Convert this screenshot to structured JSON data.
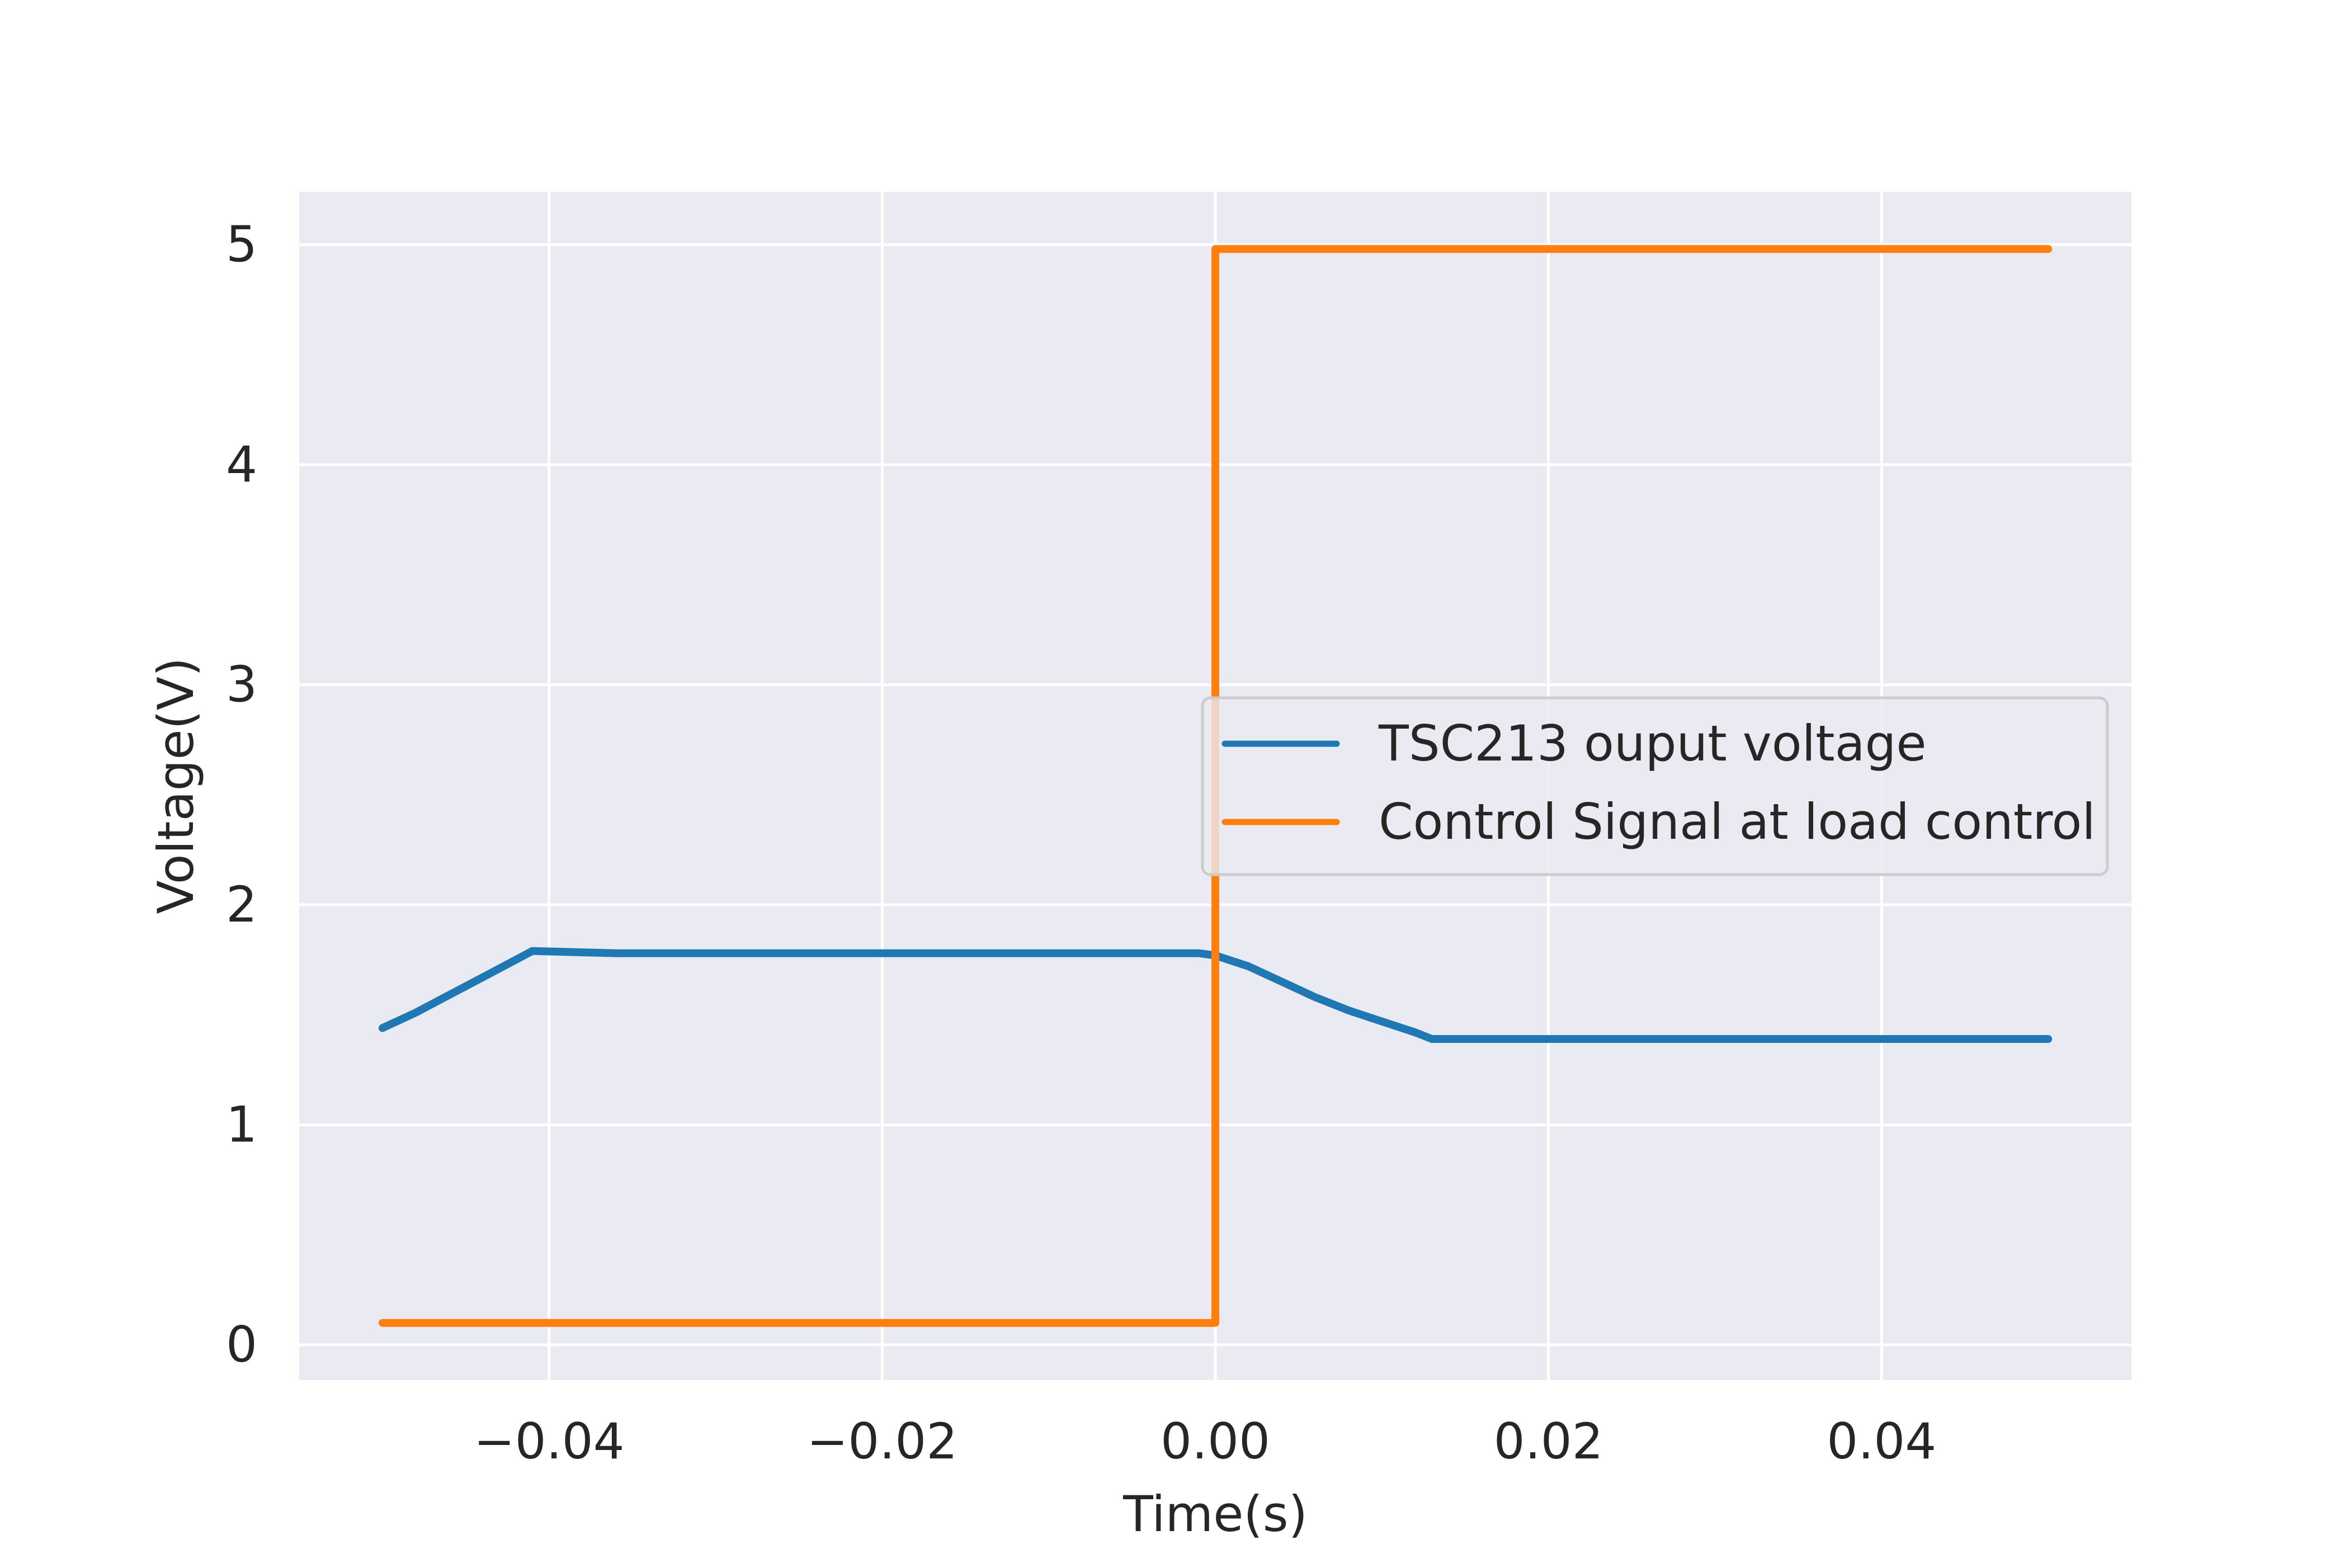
{
  "chart_data": {
    "type": "line",
    "title": "",
    "xlabel": "Time(s)",
    "ylabel": "Voltage(V)",
    "xlim": [
      -0.055,
      0.055
    ],
    "ylim": [
      -0.16,
      5.24
    ],
    "xticks": [
      -0.04,
      -0.02,
      0.0,
      0.02,
      0.04
    ],
    "xtick_labels": [
      "−0.04",
      "−0.02",
      "0.00",
      "0.02",
      "0.04"
    ],
    "yticks": [
      0,
      1,
      2,
      3,
      4,
      5
    ],
    "ytick_labels": [
      "0",
      "1",
      "2",
      "3",
      "4",
      "5"
    ],
    "grid": true,
    "background_color": "#eaeaf2",
    "legend_position": "center-right",
    "series": [
      {
        "name": "TSC213 ouput voltage",
        "color": "#1f77b4",
        "x": [
          -0.05,
          -0.048,
          -0.046,
          -0.044,
          -0.042,
          -0.041,
          -0.036,
          -0.03,
          -0.024,
          -0.018,
          -0.012,
          -0.006,
          -0.001,
          0.0,
          0.002,
          0.004,
          0.006,
          0.008,
          0.01,
          0.012,
          0.013,
          0.014,
          0.02,
          0.025,
          0.03,
          0.035,
          0.04,
          0.045,
          0.05
        ],
        "y": [
          1.44,
          1.51,
          1.59,
          1.67,
          1.75,
          1.79,
          1.78,
          1.78,
          1.78,
          1.78,
          1.78,
          1.78,
          1.78,
          1.77,
          1.72,
          1.65,
          1.58,
          1.52,
          1.47,
          1.42,
          1.39,
          1.39,
          1.39,
          1.39,
          1.39,
          1.39,
          1.39,
          1.39,
          1.39
        ]
      },
      {
        "name": "Control Signal at load control",
        "color": "#ff7f0e",
        "x": [
          -0.05,
          -0.04,
          -0.03,
          -0.02,
          -0.01,
          -0.001,
          0.0,
          0.0,
          0.01,
          0.02,
          0.03,
          0.04,
          0.05
        ],
        "y": [
          0.1,
          0.1,
          0.1,
          0.1,
          0.1,
          0.1,
          0.1,
          4.98,
          4.98,
          4.98,
          4.98,
          4.98,
          4.98
        ]
      }
    ]
  }
}
